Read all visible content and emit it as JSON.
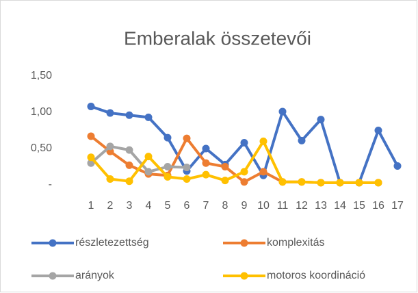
{
  "chart_data": {
    "type": "line",
    "title": "Emberalak összetevői",
    "categories": [
      "1",
      "2",
      "3",
      "4",
      "5",
      "6",
      "7",
      "8",
      "9",
      "10",
      "11",
      "12",
      "13",
      "14",
      "15",
      "16",
      "17"
    ],
    "series": [
      {
        "name": "részletezettség",
        "color": "#4472c4",
        "values": [
          1.08,
          0.99,
          0.96,
          0.93,
          0.65,
          0.19,
          0.5,
          0.28,
          0.58,
          0.13,
          1.01,
          0.61,
          0.9,
          0.03,
          0.03,
          0.75,
          0.26
        ]
      },
      {
        "name": "komplexitás",
        "color": "#ed7d31",
        "values": [
          0.67,
          0.46,
          0.27,
          0.15,
          0.13,
          0.64,
          0.3,
          0.25,
          0.04,
          0.18,
          0.04,
          0.04,
          0.03,
          0.03,
          0.03,
          0.03,
          null
        ]
      },
      {
        "name": "arányok",
        "color": "#a5a5a5",
        "values": [
          0.3,
          0.53,
          0.48,
          0.18,
          0.25,
          0.24,
          null,
          null,
          null,
          null,
          null,
          null,
          null,
          null,
          null,
          null,
          null
        ]
      },
      {
        "name": "motoros koordináció",
        "color": "#ffc000",
        "values": [
          0.38,
          0.08,
          0.05,
          0.39,
          0.11,
          0.08,
          0.14,
          0.06,
          0.18,
          0.6,
          0.04,
          0.04,
          0.03,
          0.03,
          0.03,
          0.03,
          null
        ]
      }
    ],
    "ylim": [
      0,
      1.5
    ],
    "yticks": [
      {
        "value": 0,
        "label": "-"
      },
      {
        "value": 0.5,
        "label": "0,50"
      },
      {
        "value": 1,
        "label": "1,00"
      },
      {
        "value": 1.5,
        "label": "1,50"
      }
    ],
    "grid": false
  }
}
